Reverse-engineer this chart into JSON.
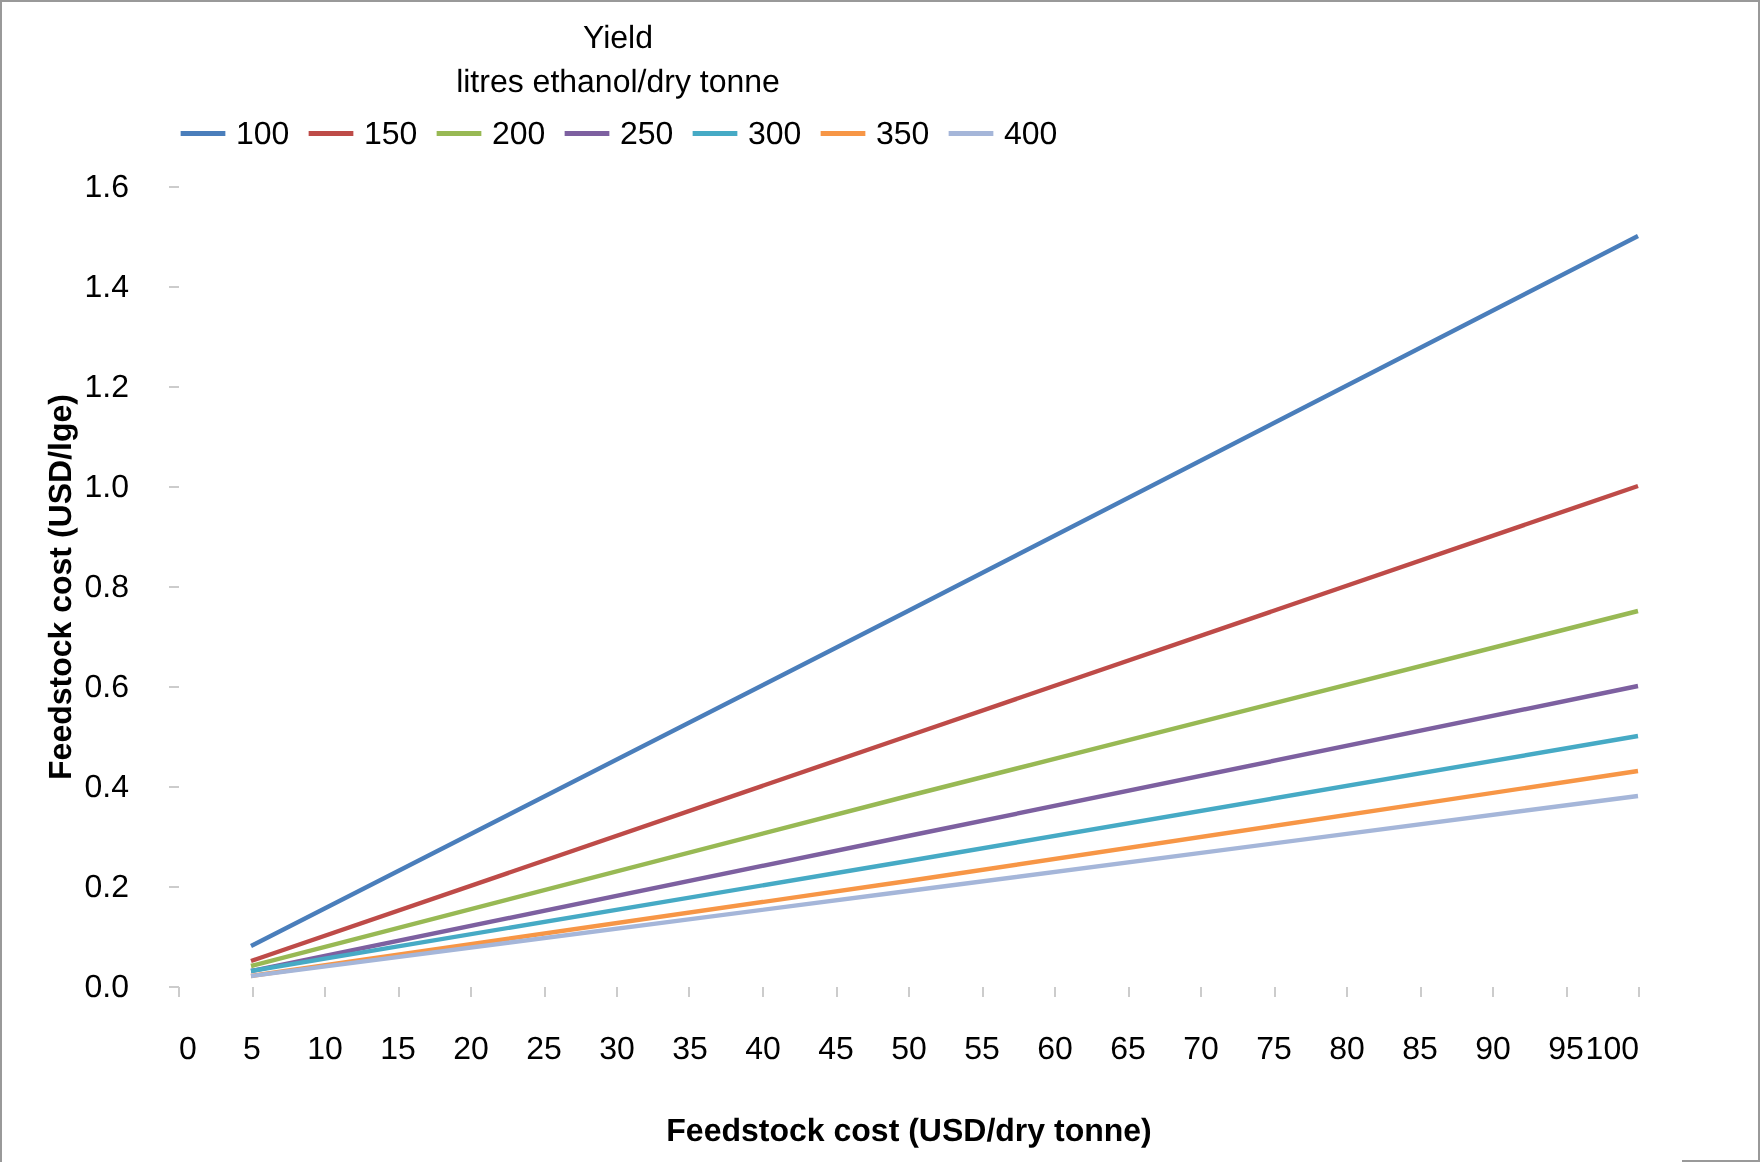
{
  "chart_data": {
    "type": "line",
    "legend_title": [
      "Yield",
      "litres ethanol/dry tonne"
    ],
    "xlabel": "Feedstock cost (USD/dry tonne)",
    "ylabel": "Feedstock cost (USD/lge)",
    "x": [
      5,
      50,
      100
    ],
    "series": [
      {
        "name": "100",
        "color": "#4a7ebb",
        "values": [
          0.08,
          0.75,
          1.5
        ]
      },
      {
        "name": "150",
        "color": "#be4b48",
        "values": [
          0.05,
          0.5,
          1.0
        ]
      },
      {
        "name": "200",
        "color": "#98b954",
        "values": [
          0.04,
          0.38,
          0.75
        ]
      },
      {
        "name": "250",
        "color": "#7d60a0",
        "values": [
          0.03,
          0.3,
          0.6
        ]
      },
      {
        "name": "300",
        "color": "#46aac5",
        "values": [
          0.03,
          0.25,
          0.5
        ]
      },
      {
        "name": "350",
        "color": "#f79646",
        "values": [
          0.02,
          0.21,
          0.43
        ]
      },
      {
        "name": "400",
        "color": "#a5b6d9",
        "values": [
          0.02,
          0.19,
          0.38
        ]
      }
    ],
    "xlim": [
      0,
      100
    ],
    "xticks": [
      0,
      5,
      10,
      15,
      20,
      25,
      30,
      35,
      40,
      45,
      50,
      55,
      60,
      65,
      70,
      75,
      80,
      85,
      90,
      95,
      100
    ],
    "ylim": [
      0,
      1.6
    ],
    "yticks": [
      {
        "value": 0,
        "label": "0.0"
      },
      {
        "value": 0.2,
        "label": "0.2"
      },
      {
        "value": 0.4,
        "label": "0.4"
      },
      {
        "value": 0.6,
        "label": "0.6"
      },
      {
        "value": 0.8,
        "label": "0.8"
      },
      {
        "value": 1.0,
        "label": "1.0"
      },
      {
        "value": 1.2,
        "label": "1.2"
      },
      {
        "value": 1.4,
        "label": "1.4"
      },
      {
        "value": 1.6,
        "label": "1.6"
      }
    ],
    "legend": "top",
    "grid": false,
    "line_style": "solid",
    "marker": "none"
  }
}
